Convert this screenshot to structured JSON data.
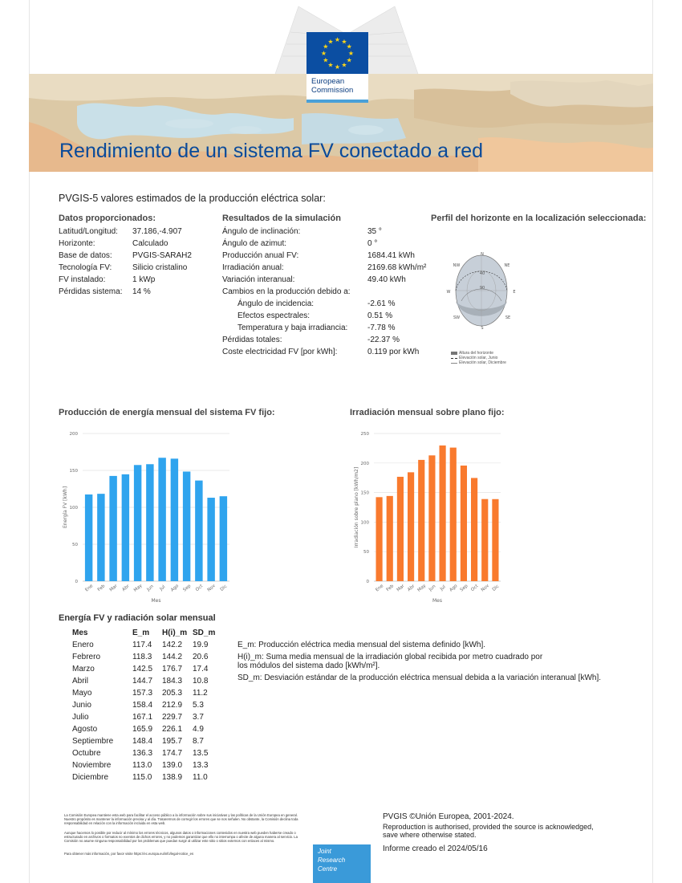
{
  "header": {
    "title": "Rendimiento de un sistema FV conectado a red",
    "logo_line1": "European",
    "logo_line2": "Commission"
  },
  "subtitle": "PVGIS-5 valores estimados de la producción eléctrica solar:",
  "inputs": {
    "heading": "Datos proporcionados:",
    "rows": [
      {
        "label": "Latitud/Longitud:",
        "value": "37.186,-4.907"
      },
      {
        "label": "Horizonte:",
        "value": "Calculado"
      },
      {
        "label": "Base de datos:",
        "value": "PVGIS-SARAH2"
      },
      {
        "label": "Tecnología FV:",
        "value": "Silicio cristalino"
      },
      {
        "label": "FV instalado:",
        "value": "1 kWp"
      },
      {
        "label": "Pérdidas sistema:",
        "value": "14 %"
      }
    ]
  },
  "results": {
    "heading": "Resultados de la simulación",
    "rows": [
      {
        "label": "Ángulo de inclinación:",
        "value": "35 °"
      },
      {
        "label": "Ángulo de azimut:",
        "value": "0 °"
      },
      {
        "label": "Producción anual FV:",
        "value": "1684.41 kWh"
      },
      {
        "label": "Irradiación anual:",
        "value": "2169.68 kWh/m²"
      },
      {
        "label": "Variación interanual:",
        "value": "49.40 kWh"
      },
      {
        "label": "Cambios en la producción debido a:",
        "value": ""
      },
      {
        "label": "Ángulo de incidencia:",
        "value": "-2.61 %"
      },
      {
        "label": "Efectos espectrales:",
        "value": "0.51 %"
      },
      {
        "label": "Temperatura y baja irradiancia:",
        "value": "-7.78 %"
      },
      {
        "label": "Pérdidas totales:",
        "value": "-22.37 %"
      },
      {
        "label": "Coste electricidad FV [por kWh]:",
        "value": "0.119 por kWh"
      }
    ]
  },
  "horizon": {
    "heading": "Perfil del horizonte en la localización seleccionada:",
    "compass": {
      "n": "N",
      "ne": "NE",
      "e": "E",
      "se": "SE",
      "s": "S",
      "sw": "SW",
      "w": "W",
      "nw": "NW",
      "r1": "40",
      "r2": "90"
    },
    "legend": [
      "Altura del horizonte",
      "Elevación solar, Junio",
      "Elevación solar, Diciembre"
    ]
  },
  "chart_data": [
    {
      "type": "bar",
      "title": "Producción de energía mensual del sistema FV fijo:",
      "categories": [
        "Ene",
        "Feb",
        "Mar",
        "Abr",
        "May",
        "Jun",
        "Jul",
        "Ago",
        "Sep",
        "Oct",
        "Nov",
        "Dic"
      ],
      "values": [
        117.4,
        118.3,
        142.5,
        144.7,
        157.3,
        158.4,
        167.1,
        165.9,
        148.4,
        136.3,
        113.0,
        115.0
      ],
      "xlabel": "Mes",
      "ylabel": "Energía FV [kWh]",
      "ylim": [
        0,
        200
      ],
      "yticks": [
        0,
        50,
        100,
        150,
        200
      ],
      "color": "#2fa4ee",
      "grid": true
    },
    {
      "type": "bar",
      "title": "Irradiación mensual sobre plano fijo:",
      "categories": [
        "Ene",
        "Feb",
        "Mar",
        "Abr",
        "May",
        "Jun",
        "Jul",
        "Ago",
        "Sep",
        "Oct",
        "Nov",
        "Dic"
      ],
      "values": [
        142.2,
        144.2,
        176.7,
        184.3,
        205.3,
        212.9,
        229.7,
        226.1,
        195.7,
        174.7,
        139.0,
        138.9
      ],
      "xlabel": "Mes",
      "ylabel": "Irradiación sobre plano [kWh/m2]",
      "ylim": [
        0,
        250
      ],
      "yticks": [
        0,
        50,
        100,
        150,
        200,
        250
      ],
      "color": "#f97a2e",
      "grid": true
    }
  ],
  "table": {
    "heading": "Energía FV y radiación solar mensual",
    "columns": [
      "Mes",
      "E_m",
      "H(i)_m",
      "SD_m"
    ],
    "rows": [
      [
        "Enero",
        "117.4",
        "142.2",
        "19.9"
      ],
      [
        "Febrero",
        "118.3",
        "144.2",
        "20.6"
      ],
      [
        "Marzo",
        "142.5",
        "176.7",
        "17.4"
      ],
      [
        "Abril",
        "144.7",
        "184.3",
        "10.8"
      ],
      [
        "Mayo",
        "157.3",
        "205.3",
        "11.2"
      ],
      [
        "Junio",
        "158.4",
        "212.9",
        "5.3"
      ],
      [
        "Julio",
        "167.1",
        "229.7",
        "3.7"
      ],
      [
        "Agosto",
        "165.9",
        "226.1",
        "4.9"
      ],
      [
        "Septiembre",
        "148.4",
        "195.7",
        "8.7"
      ],
      [
        "Octubre",
        "136.3",
        "174.7",
        "13.5"
      ],
      [
        "Noviembre",
        "113.0",
        "139.0",
        "13.3"
      ],
      [
        "Diciembre",
        "115.0",
        "138.9",
        "11.0"
      ]
    ]
  },
  "definitions": {
    "em": "E_m: Producción eléctrica media mensual del sistema definido [kWh].",
    "him_1": "H(i)_m: Suma media mensual de la irradiación global recibida por metro cuadrado por",
    "him_2": "los módulos del sistema dado [kWh/m²].",
    "sdm": "SD_m: Desviación estándar de la producción eléctrica mensual debida a la variación interanual [kWh]."
  },
  "footer": {
    "disclaimer_1": "La Comisión Europea mantiene esta web para facilitar el acceso público a la información sobre sus iniciativas y las políticas de la Unión Europea en general. Nuestro propósito es mantener la información precisa y al día. Tratarermos de corregir los errores que se nos señalen. No obstante, la Comisión declina toda responsabilidad en relación con la información incluida en esta web.",
    "disclaimer_2": "Aunque hacemos lo posible por reducir al mínimo los errores técnicos, algunos datos o informaciones contenidos en nuestra web pueden haberse creado o estructurado en archivos o formatos no exentos de dichos errores, y no podemos garantizar que ello no interrumpa o afecte de alguna manera al servicio. La Comisión no asume ninguna responsabilidad por los problemas que puedan surgir al utilizar este sitio o sitios externos con enlaces al mismo.",
    "disclaimer_3": "Para obtener más información, por favor visite https://ec.europa.eu/info/legal-notice_es",
    "jrc_1": "Joint",
    "jrc_2": "Research",
    "jrc_3": "Centre",
    "copyright": "PVGIS ©Unión Europea, 2001-2024.",
    "repro_1": "Reproduction is authorised, provided the source is acknowledged,",
    "repro_2": "save where otherwise stated.",
    "report_date": "Informe creado el 2024/05/16"
  }
}
